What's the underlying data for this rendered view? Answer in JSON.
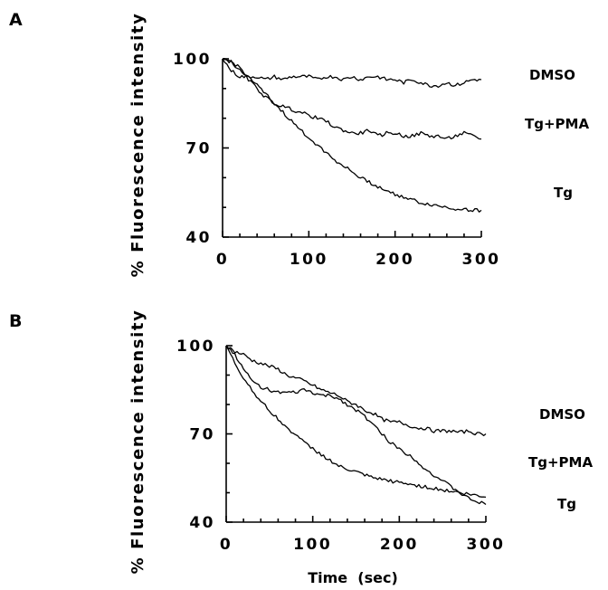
{
  "chart_data": [
    {
      "panel": "A",
      "type": "line",
      "title": "",
      "ylabel": "% Fluorescence intensity",
      "xlabel": "",
      "xlim": [
        0,
        300
      ],
      "ylim": [
        40,
        100
      ],
      "xticks": [
        "0",
        "100",
        "200",
        "300"
      ],
      "yticks": [
        "100",
        "70",
        "40"
      ],
      "grid": false,
      "series": [
        {
          "name": "DMSO",
          "x": [
            0,
            10,
            20,
            30,
            40,
            50,
            60,
            70,
            80,
            90,
            100,
            110,
            120,
            130,
            140,
            150,
            160,
            170,
            180,
            190,
            200,
            210,
            220,
            230,
            240,
            250,
            260,
            270,
            280,
            290,
            300
          ],
          "values": [
            100,
            96,
            94,
            94,
            94,
            93,
            94,
            93,
            94,
            94,
            94,
            93,
            94,
            94,
            93,
            94,
            93,
            94,
            94,
            93,
            93,
            92,
            93,
            92,
            91,
            91,
            92,
            91,
            92,
            93,
            93
          ]
        },
        {
          "name": "Tg+PMA",
          "x": [
            0,
            10,
            20,
            30,
            40,
            50,
            60,
            70,
            80,
            90,
            100,
            110,
            120,
            130,
            140,
            150,
            160,
            170,
            180,
            190,
            200,
            210,
            220,
            230,
            240,
            250,
            260,
            270,
            280,
            290,
            300
          ],
          "values": [
            100,
            99,
            96,
            93,
            90,
            87,
            85,
            84,
            83,
            82,
            81,
            80,
            79,
            77,
            76,
            75,
            75,
            76,
            74,
            75,
            75,
            74,
            74,
            75,
            74,
            74,
            73,
            74,
            75,
            74,
            73
          ]
        },
        {
          "name": "Tg",
          "x": [
            0,
            10,
            20,
            30,
            40,
            50,
            60,
            70,
            80,
            90,
            100,
            110,
            120,
            130,
            140,
            150,
            160,
            170,
            180,
            190,
            200,
            210,
            220,
            230,
            240,
            250,
            260,
            270,
            280,
            290,
            300
          ],
          "values": [
            100,
            99,
            97,
            94,
            91,
            88,
            85,
            82,
            79,
            76,
            73.5,
            71,
            68.5,
            66,
            64,
            62,
            60,
            58.5,
            57,
            55.5,
            54.5,
            53.5,
            52.5,
            51.5,
            51,
            50.5,
            50,
            49.5,
            49.5,
            49,
            49
          ]
        }
      ]
    },
    {
      "panel": "B",
      "type": "line",
      "title": "",
      "ylabel": "% Fluorescence intensity",
      "xlabel": "Time  (sec)",
      "xlim": [
        0,
        300
      ],
      "ylim": [
        40,
        100
      ],
      "xticks": [
        "0",
        "100",
        "200",
        "300"
      ],
      "yticks": [
        "100",
        "70",
        "40"
      ],
      "grid": false,
      "series": [
        {
          "name": "DMSO",
          "x": [
            0,
            10,
            20,
            30,
            40,
            50,
            60,
            70,
            80,
            90,
            100,
            110,
            120,
            130,
            140,
            150,
            160,
            170,
            180,
            190,
            200,
            210,
            220,
            230,
            240,
            250,
            260,
            270,
            280,
            290,
            300
          ],
          "values": [
            100,
            98,
            97,
            95,
            94,
            93,
            92,
            90,
            89,
            88,
            86.5,
            85,
            84,
            83,
            81,
            80,
            78,
            77,
            75,
            74,
            74,
            73,
            72,
            72,
            71,
            71,
            71,
            70.5,
            71,
            70,
            70
          ]
        },
        {
          "name": "Tg+PMA",
          "x": [
            0,
            10,
            20,
            30,
            40,
            50,
            60,
            70,
            80,
            90,
            100,
            110,
            120,
            130,
            140,
            150,
            160,
            170,
            180,
            190,
            200,
            210,
            220,
            230,
            240,
            250,
            260,
            270,
            280,
            290,
            300
          ],
          "values": [
            100,
            97,
            92,
            88,
            86,
            85,
            84,
            84,
            84,
            85,
            84,
            83,
            83,
            82,
            80,
            78,
            76,
            73,
            70,
            67,
            65,
            63,
            61,
            58,
            56,
            54,
            52,
            50,
            48,
            47,
            46
          ]
        },
        {
          "name": "Tg",
          "x": [
            0,
            10,
            20,
            30,
            40,
            50,
            60,
            70,
            80,
            90,
            100,
            110,
            120,
            130,
            140,
            150,
            160,
            170,
            180,
            190,
            200,
            210,
            220,
            230,
            240,
            250,
            260,
            270,
            280,
            290,
            300
          ],
          "values": [
            100,
            94,
            89,
            85,
            81,
            78,
            75,
            72,
            70,
            67,
            65,
            63,
            61,
            59,
            58,
            57,
            56,
            55,
            54.5,
            54,
            53.5,
            53,
            52.5,
            52,
            51.5,
            51,
            50.5,
            50,
            49.5,
            49,
            48.5
          ]
        }
      ]
    }
  ]
}
